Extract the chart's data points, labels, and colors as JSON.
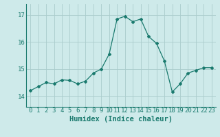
{
  "x": [
    0,
    1,
    2,
    3,
    4,
    5,
    6,
    7,
    8,
    9,
    10,
    11,
    12,
    13,
    14,
    15,
    16,
    17,
    18,
    19,
    20,
    21,
    22,
    23
  ],
  "y": [
    14.2,
    14.35,
    14.5,
    14.45,
    14.6,
    14.58,
    14.45,
    14.55,
    14.85,
    15.0,
    15.55,
    16.85,
    16.95,
    16.75,
    16.85,
    16.2,
    15.95,
    15.3,
    14.15,
    14.45,
    14.85,
    14.95,
    15.05,
    15.05
  ],
  "xlabel": "Humidex (Indice chaleur)",
  "ylim": [
    13.6,
    17.4
  ],
  "xlim": [
    -0.5,
    23.5
  ],
  "yticks": [
    14,
    15,
    16,
    17
  ],
  "xticks": [
    0,
    1,
    2,
    3,
    4,
    5,
    6,
    7,
    8,
    9,
    10,
    11,
    12,
    13,
    14,
    15,
    16,
    17,
    18,
    19,
    20,
    21,
    22,
    23
  ],
  "line_color": "#1a7a6e",
  "marker": "D",
  "marker_size": 2.0,
  "bg_color": "#ceeaea",
  "grid_color": "#aacccc",
  "tick_fontsize": 6.5,
  "xlabel_fontsize": 7.5
}
